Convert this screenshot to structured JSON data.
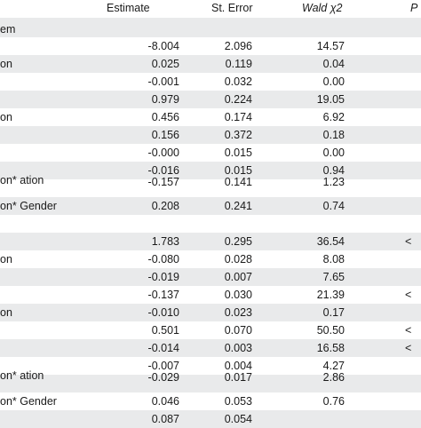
{
  "header": {
    "estimate": "Estimate",
    "st_error": "St. Error",
    "wald": "Wald χ2",
    "p": "P"
  },
  "rows": [
    {
      "label": "em",
      "estimate": "",
      "st_error": "",
      "wald": "",
      "p": ""
    },
    {
      "label": "",
      "estimate": "-8.004",
      "st_error": "2.096",
      "wald": "14.57",
      "p": ""
    },
    {
      "label": "on",
      "estimate": "0.025",
      "st_error": "0.119",
      "wald": "0.04",
      "p": ""
    },
    {
      "label": "",
      "estimate": "-0.001",
      "st_error": "0.032",
      "wald": "0.00",
      "p": ""
    },
    {
      "label": "",
      "estimate": "0.979",
      "st_error": "0.224",
      "wald": "19.05",
      "p": ""
    },
    {
      "label": "on",
      "estimate": "0.456",
      "st_error": "0.174",
      "wald": "6.92",
      "p": ""
    },
    {
      "label": "",
      "estimate": "0.156",
      "st_error": "0.372",
      "wald": "0.18",
      "p": ""
    },
    {
      "label": "",
      "estimate": "-0.000",
      "st_error": "0.015",
      "wald": "0.00",
      "p": ""
    },
    {
      "label": "",
      "estimate": "-0.016",
      "st_error": "0.015",
      "wald": "0.94",
      "p": ""
    },
    {
      "label": "on* ation",
      "estimate": "-0.157",
      "st_error": "0.141",
      "wald": "1.23",
      "p": ""
    },
    {
      "label": "on* Gender",
      "estimate": "0.208",
      "st_error": "0.241",
      "wald": "0.74",
      "p": ""
    },
    {
      "label": "",
      "estimate": "",
      "st_error": "",
      "wald": "",
      "p": ""
    },
    {
      "label": "",
      "estimate": "1.783",
      "st_error": "0.295",
      "wald": "36.54",
      "p": "<"
    },
    {
      "label": "on",
      "estimate": "-0.080",
      "st_error": "0.028",
      "wald": "8.08",
      "p": ""
    },
    {
      "label": "",
      "estimate": "-0.019",
      "st_error": "0.007",
      "wald": "7.65",
      "p": ""
    },
    {
      "label": "",
      "estimate": "-0.137",
      "st_error": "0.030",
      "wald": "21.39",
      "p": "<"
    },
    {
      "label": "on",
      "estimate": "-0.010",
      "st_error": "0.023",
      "wald": "0.17",
      "p": ""
    },
    {
      "label": "",
      "estimate": "0.501",
      "st_error": "0.070",
      "wald": "50.50",
      "p": "<"
    },
    {
      "label": "",
      "estimate": "-0.014",
      "st_error": "0.003",
      "wald": "16.58",
      "p": "<"
    },
    {
      "label": "",
      "estimate": "-0.007",
      "st_error": "0.004",
      "wald": "4.27",
      "p": ""
    },
    {
      "label": "on* ation",
      "estimate": "-0.029",
      "st_error": "0.017",
      "wald": "2.86",
      "p": ""
    },
    {
      "label": "on* Gender",
      "estimate": "0.046",
      "st_error": "0.053",
      "wald": "0.76",
      "p": ""
    },
    {
      "label": "",
      "estimate": "0.087",
      "st_error": "0.054",
      "wald": "",
      "p": ""
    }
  ]
}
